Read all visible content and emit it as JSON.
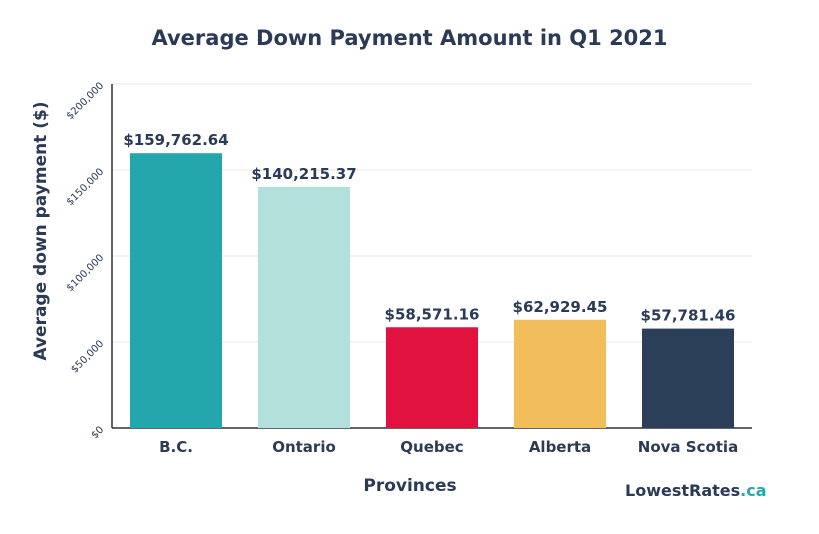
{
  "chart_data": {
    "type": "bar",
    "title": "Average Down Payment Amount in Q1 2021",
    "xlabel": "Provinces",
    "ylabel": "Average down payment ($)",
    "categories": [
      "B.C.",
      "Ontario",
      "Quebec",
      "Alberta",
      "Nova Scotia"
    ],
    "values": [
      159762.64,
      140215.37,
      58571.16,
      62929.45,
      57781.46
    ],
    "value_labels": [
      "$159,762.64",
      "$140,215.37",
      "$58,571.16",
      "$62,929.45",
      "$57,781.46"
    ],
    "bar_colors": [
      "#23a7ad",
      "#b2e0db",
      "#e2123f",
      "#f2bd5b",
      "#2b3f58"
    ],
    "yticks": [
      0,
      50000,
      100000,
      150000,
      200000
    ],
    "ytick_labels": [
      "$0",
      "$50,000",
      "$100,000",
      "$150,000",
      "$200,000"
    ],
    "ylim": [
      0,
      200000
    ],
    "grid": true,
    "legend": "none"
  },
  "brand": {
    "name": "LowestRates",
    "suffix": ".ca",
    "accent": "#23a7ad"
  },
  "colors": {
    "text": "#2b3a55",
    "grid": "#e6e6e6",
    "axis": "#333333"
  }
}
